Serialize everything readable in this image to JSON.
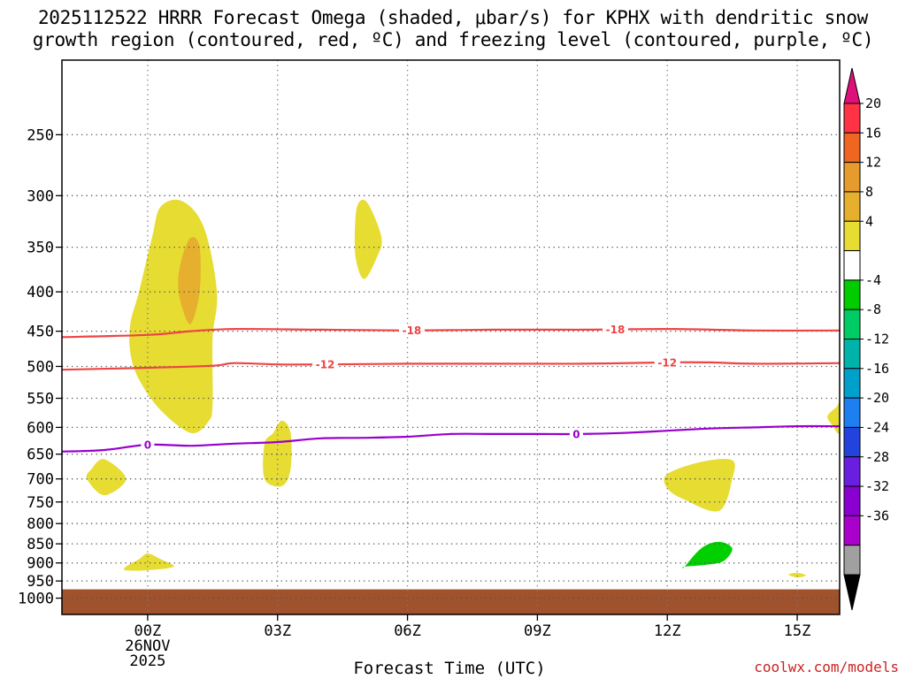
{
  "title_line1": "2025112522 HRRR Forecast Omega (shaded, μbar/s) for KPHX with dendritic snow",
  "title_line2": "growth region (contoured, red, ºC) and freezing level (contoured, purple, ºC)",
  "watermark": "coolwx.com/models",
  "chart_data": {
    "type": "time-height contour",
    "xlabel": "Forecast Time (UTC)",
    "x_range_hours": [
      -1.98,
      15.98
    ],
    "x_ticks": [
      {
        "hour": 0,
        "label": "00Z",
        "sub": [
          "26NOV",
          "2025"
        ]
      },
      {
        "hour": 3,
        "label": "03Z"
      },
      {
        "hour": 6,
        "label": "06Z"
      },
      {
        "hour": 9,
        "label": "09Z"
      },
      {
        "hour": 12,
        "label": "12Z"
      },
      {
        "hour": 15,
        "label": "15Z"
      }
    ],
    "y_axis": {
      "scale": "log-pressure",
      "range_hpa": [
        1050,
        200
      ],
      "ticks": [
        250,
        300,
        350,
        400,
        450,
        500,
        550,
        600,
        650,
        700,
        750,
        800,
        850,
        900,
        950,
        1000
      ]
    },
    "grid": true,
    "ground": {
      "top_hpa": 974,
      "color": "#a0522d"
    },
    "omega_regions": [
      {
        "level": "4 to 8",
        "color": "#e6dc32",
        "points": [
          [
            -0.4,
            440
          ],
          [
            -0.2,
            400
          ],
          [
            0.1,
            340
          ],
          [
            0.3,
            310
          ],
          [
            0.8,
            305
          ],
          [
            1.3,
            330
          ],
          [
            1.6,
            400
          ],
          [
            1.5,
            460
          ],
          [
            1.5,
            560
          ],
          [
            1.4,
            590
          ],
          [
            1.0,
            610
          ],
          [
            0.3,
            570
          ],
          [
            -0.2,
            520
          ],
          [
            -0.4,
            480
          ]
        ]
      },
      {
        "level": "8 to 12",
        "color": "#e6af2d",
        "points": [
          [
            0.7,
            390
          ],
          [
            0.8,
            360
          ],
          [
            1.0,
            340
          ],
          [
            1.2,
            350
          ],
          [
            1.2,
            400
          ],
          [
            1.0,
            440
          ],
          [
            0.8,
            420
          ]
        ]
      },
      {
        "level": "4 to 8",
        "color": "#e6dc32",
        "points": [
          [
            4.8,
            320
          ],
          [
            4.9,
            305
          ],
          [
            5.1,
            308
          ],
          [
            5.4,
            340
          ],
          [
            5.3,
            360
          ],
          [
            5.0,
            385
          ],
          [
            4.8,
            360
          ]
        ]
      },
      {
        "level": "4 to 8",
        "color": "#e6dc32",
        "points": [
          [
            2.7,
            630
          ],
          [
            2.9,
            610
          ],
          [
            3.1,
            588
          ],
          [
            3.3,
            610
          ],
          [
            3.3,
            680
          ],
          [
            3.1,
            715
          ],
          [
            2.7,
            700
          ]
        ]
      },
      {
        "level": "4 to 8",
        "color": "#e6dc32",
        "points": [
          [
            -1.3,
            680
          ],
          [
            -1.0,
            660
          ],
          [
            -0.5,
            700
          ],
          [
            -1.0,
            735
          ],
          [
            -1.4,
            700
          ]
        ]
      },
      {
        "level": "4 to 8",
        "color": "#e6dc32",
        "points": [
          [
            -0.5,
            910
          ],
          [
            -0.2,
            890
          ],
          [
            0,
            875
          ],
          [
            0.3,
            890
          ],
          [
            0.6,
            910
          ],
          [
            0.0,
            920
          ],
          [
            -0.5,
            920
          ]
        ]
      },
      {
        "level": "4 to 8",
        "color": "#e6dc32",
        "points": [
          [
            12.0,
            690
          ],
          [
            12.8,
            665
          ],
          [
            13.5,
            662
          ],
          [
            13.5,
            700
          ],
          [
            13.2,
            770
          ],
          [
            12.4,
            745
          ],
          [
            12.0,
            720
          ]
        ]
      },
      {
        "level": "4 to 8",
        "color": "#e6dc32",
        "points": [
          [
            15.7,
            580
          ],
          [
            15.9,
            565
          ],
          [
            15.98,
            560
          ],
          [
            15.98,
            610
          ],
          [
            15.8,
            595
          ]
        ]
      },
      {
        "level": "4 to 8",
        "color": "#e6dc32",
        "points": [
          [
            14.8,
            932
          ],
          [
            15.0,
            927
          ],
          [
            15.2,
            934
          ],
          [
            15.0,
            940
          ]
        ]
      },
      {
        "level": "-8 to -4",
        "color": "#00d000",
        "points": [
          [
            12.4,
            910
          ],
          [
            12.8,
            860
          ],
          [
            13.2,
            845
          ],
          [
            13.5,
            862
          ],
          [
            13.3,
            895
          ],
          [
            12.9,
            905
          ],
          [
            12.4,
            910
          ]
        ]
      }
    ],
    "contours": [
      {
        "name": "-18",
        "color": "#ee4444",
        "label_hours": [
          6.1,
          10.8
        ],
        "points": [
          [
            -1.98,
            458
          ],
          [
            0,
            455
          ],
          [
            1.0,
            450
          ],
          [
            2.0,
            447
          ],
          [
            4.0,
            448
          ],
          [
            6.0,
            449
          ],
          [
            8.0,
            448
          ],
          [
            10.0,
            448
          ],
          [
            12.0,
            447
          ],
          [
            14.0,
            449
          ],
          [
            15.98,
            449
          ]
        ]
      },
      {
        "name": "-12",
        "color": "#ee4444",
        "label_hours": [
          4.1,
          12.0
        ],
        "points": [
          [
            -1.98,
            505
          ],
          [
            0,
            502
          ],
          [
            1.5,
            499
          ],
          [
            2.0,
            495
          ],
          [
            3.0,
            497
          ],
          [
            4.0,
            497
          ],
          [
            6.0,
            496
          ],
          [
            8.0,
            496
          ],
          [
            10.0,
            496
          ],
          [
            12.0,
            494
          ],
          [
            13.0,
            494
          ],
          [
            14.0,
            496
          ],
          [
            15.98,
            495
          ]
        ]
      },
      {
        "name": "0",
        "color": "#9900cc",
        "label_hours": [
          0.0,
          9.9
        ],
        "points": [
          [
            -1.98,
            645
          ],
          [
            -1.0,
            642
          ],
          [
            0,
            632
          ],
          [
            1.0,
            634
          ],
          [
            2.0,
            630
          ],
          [
            3.0,
            627
          ],
          [
            4.0,
            620
          ],
          [
            5.0,
            619
          ],
          [
            6.0,
            617
          ],
          [
            7.0,
            612
          ],
          [
            8.0,
            612
          ],
          [
            9.0,
            612
          ],
          [
            10.0,
            612
          ],
          [
            11.0,
            610
          ],
          [
            12.0,
            606
          ],
          [
            13.0,
            602
          ],
          [
            14.0,
            600
          ],
          [
            15.0,
            598
          ],
          [
            15.98,
            598
          ]
        ]
      }
    ],
    "colorbar": {
      "unit": "μbar/s",
      "labels": [
        "20",
        "16",
        "12",
        "8",
        "4",
        "-4",
        "-8",
        "-12",
        "-16",
        "-20",
        "-24",
        "-28",
        "-32",
        "-36"
      ],
      "colors": [
        "#ff3344",
        "#ee6622",
        "#e69b2d",
        "#e6af2d",
        "#e6dc32",
        "#ffffff",
        "#00cc00",
        "#00cc66",
        "#00b3aa",
        "#009fcc",
        "#1e7ff0",
        "#2244dd",
        "#6a1ee0",
        "#8a00d0",
        "#aa00cc",
        "#a0a0a0"
      ],
      "top_cap": "#e0107a",
      "bottom_cap": "#000000"
    }
  }
}
